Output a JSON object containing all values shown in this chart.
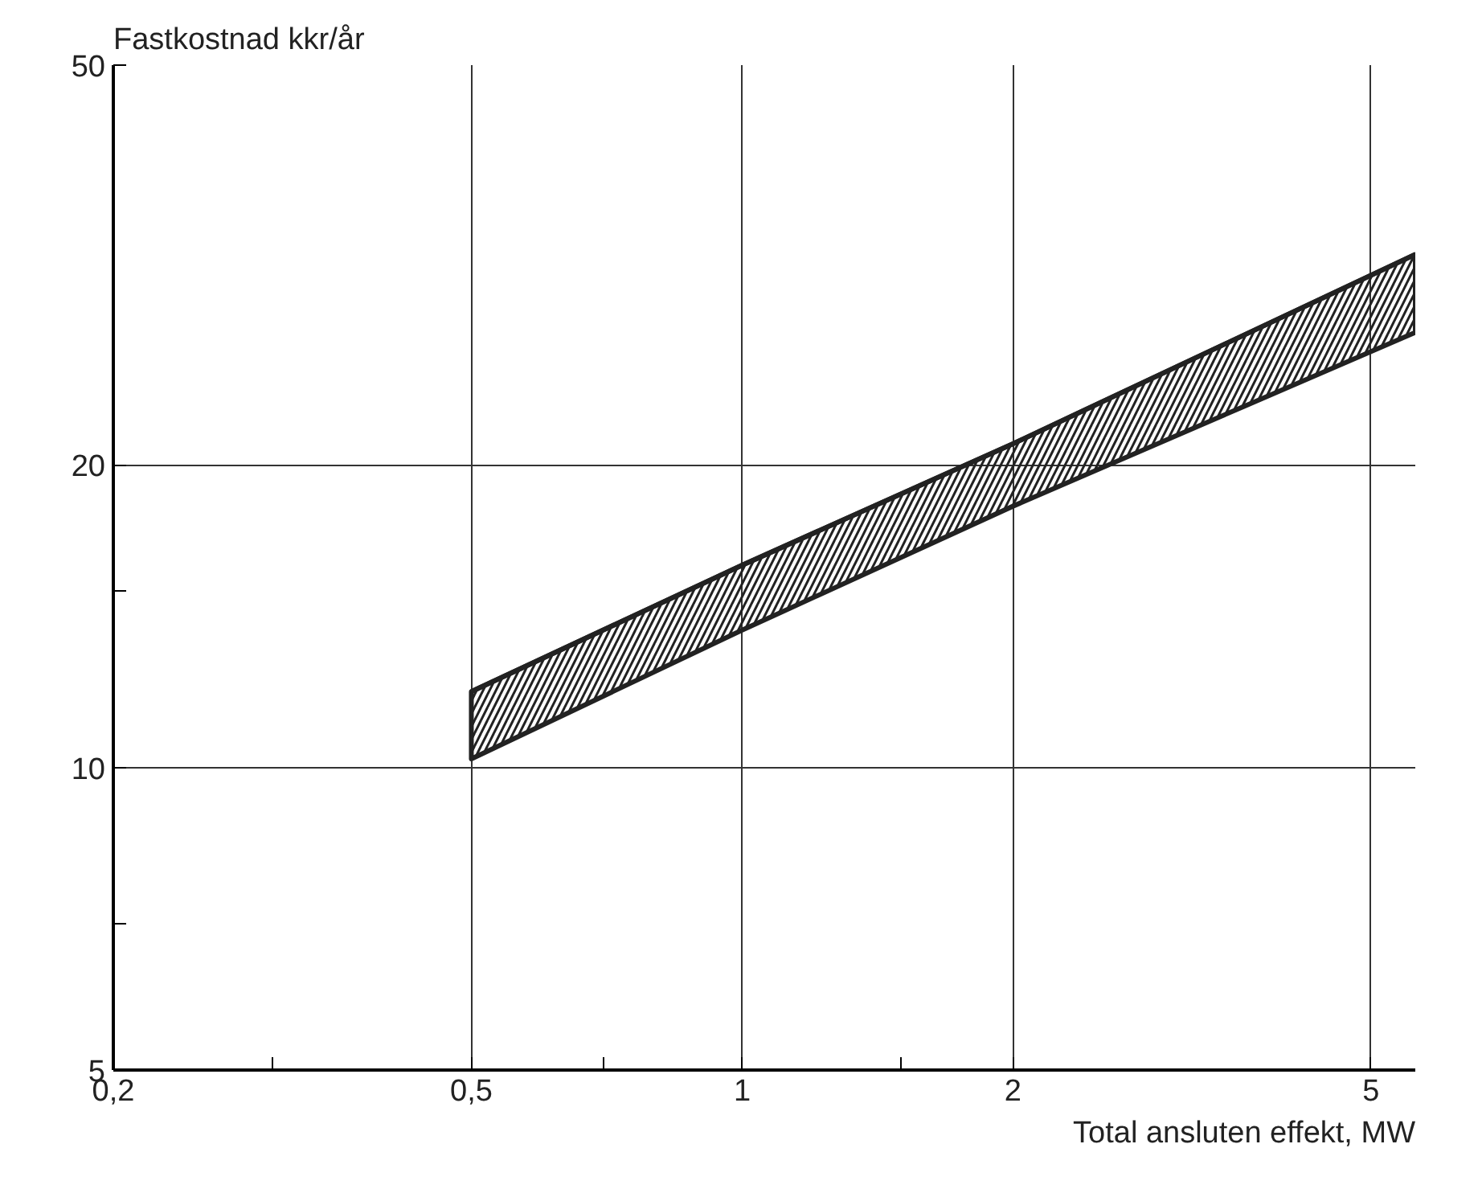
{
  "chart_data": {
    "type": "line",
    "xlabel": "Total ansluten effekt, MW",
    "ylabel": "Fastkostnad kkr/år",
    "log": "xy",
    "grid": true,
    "xlim": [
      0.2,
      5.6
    ],
    "ylim": [
      5,
      50
    ],
    "xticks": [
      {
        "value": 0.2,
        "label": "0,2"
      },
      {
        "value": 0.3,
        "label": null
      },
      {
        "value": 0.5,
        "label": "0,5"
      },
      {
        "value": 0.7,
        "label": null
      },
      1,
      {
        "value": 1.5,
        "label": null
      },
      2,
      5
    ],
    "yticks": [
      5,
      {
        "value": 7,
        "label": null
      },
      10,
      {
        "value": 15,
        "label": null
      },
      20,
      50
    ],
    "series": [
      {
        "color": "#222222",
        "x": [
          0.5,
          1,
          2,
          5.6
        ],
        "values": [
          11.9,
          15.9,
          21.0,
          32.4
        ],
        "lower": [
          10.2,
          13.7,
          18.2,
          27.1
        ],
        "upper": [
          11.9,
          15.9,
          21.0,
          32.4
        ]
      }
    ]
  }
}
